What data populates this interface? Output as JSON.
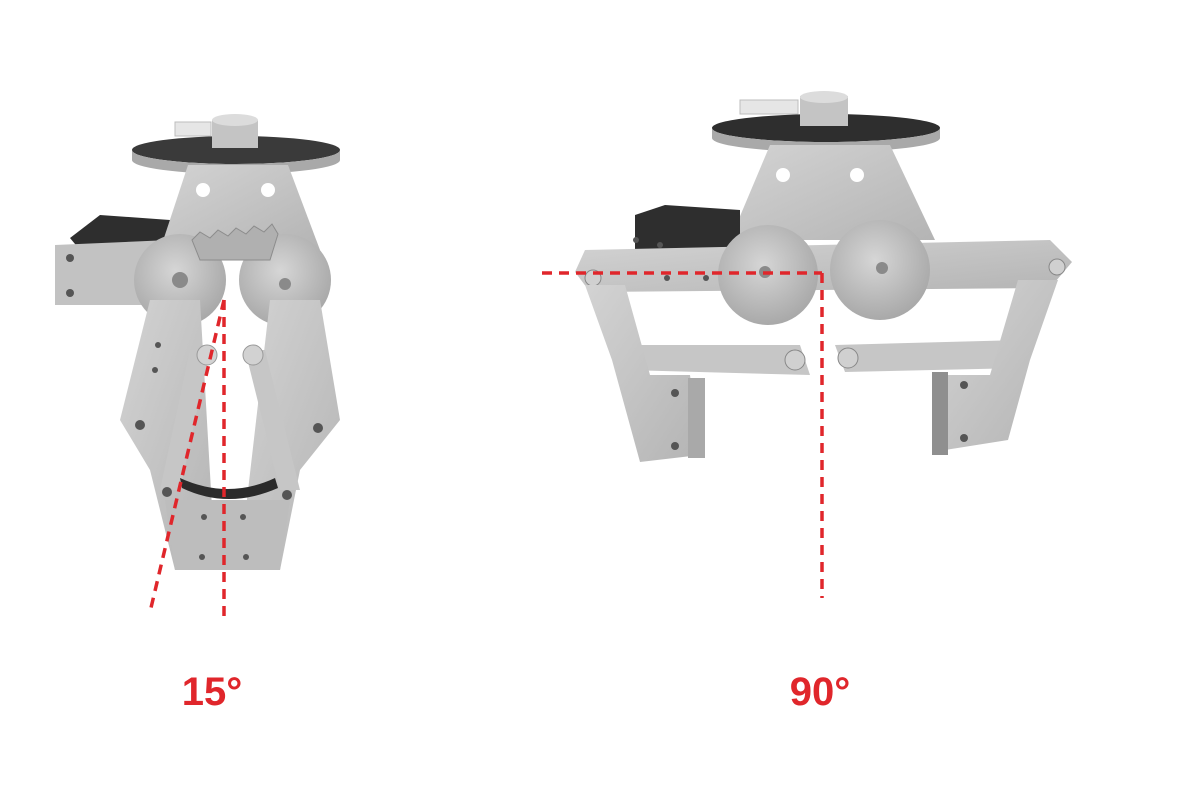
{
  "labels": {
    "closed_angle": "15°",
    "open_angle": "90°"
  },
  "colors": {
    "background": "#ffffff",
    "part_light": "#c9c9c9",
    "part_mid": "#b3b3b3",
    "part_dark": "#8f8f8f",
    "shadow": "#2e2e2e",
    "annotation": "#e0262b"
  },
  "gripper_states": [
    {
      "state": "closed",
      "angle": "15°"
    },
    {
      "state": "open",
      "angle": "90°"
    }
  ]
}
